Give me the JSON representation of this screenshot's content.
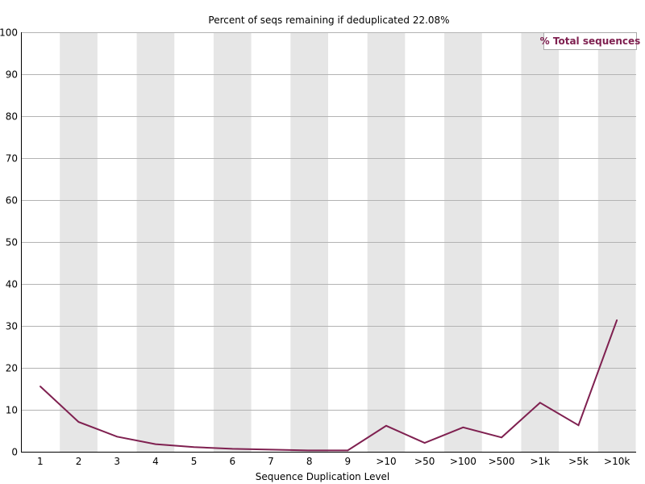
{
  "chart_data": {
    "type": "line",
    "title": "Percent of seqs remaining if deduplicated 22.08%",
    "xlabel": "Sequence Duplication Level",
    "ylabel": "",
    "categories": [
      "1",
      "2",
      "3",
      "4",
      "5",
      "6",
      "7",
      "8",
      "9",
      ">10",
      ">50",
      ">100",
      ">500",
      ">1k",
      ">5k",
      ">10k"
    ],
    "ylim": [
      0,
      100
    ],
    "yticks": [
      0,
      10,
      20,
      30,
      40,
      50,
      60,
      70,
      80,
      90,
      100
    ],
    "grid": true,
    "legend_position": "top-right",
    "series": [
      {
        "name": "% Total sequences",
        "color": "#7f2050",
        "values": [
          15.6,
          7.1,
          3.6,
          1.8,
          1.1,
          0.7,
          0.5,
          0.3,
          0.3,
          6.2,
          2.1,
          5.8,
          3.4,
          11.7,
          6.3,
          31.4
        ]
      }
    ]
  },
  "colors": {
    "band": "#e6e6e6",
    "grid": "#b3b3b3",
    "axis": "#000000"
  }
}
